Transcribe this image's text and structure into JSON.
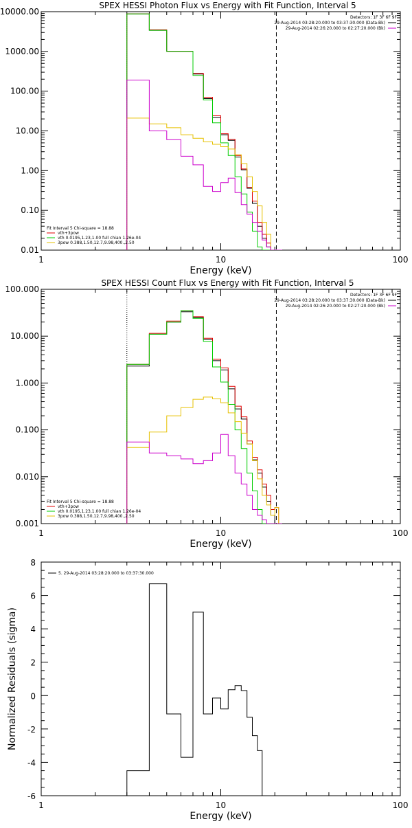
{
  "chart_data": [
    {
      "type": "line",
      "title": "SPEX HESSI Photon Flux vs Energy with Fit Function, Interval 5",
      "xlabel": "Energy (keV)",
      "ylabel": "",
      "xscale": "log",
      "yscale": "log",
      "xlim": [
        1,
        100
      ],
      "ylim": [
        0.01,
        10000
      ],
      "x_ticks": [
        "1",
        "10",
        "100"
      ],
      "y_ticks": [
        "10000.00",
        "1000.00",
        "100.00",
        "10.00",
        "1.00",
        "0.10",
        "0.01"
      ],
      "vlines": {
        "dotted": 3,
        "dashed": 20.4
      },
      "legend_top": {
        "position": "top-right",
        "header": "Detectors: 1F 3F 6F 9F",
        "entries": [
          {
            "label": "29-Aug-2014 03:28:20.000 to 03:37:30.000 (Data-Bk)",
            "color": "#000000"
          },
          {
            "label": "29-Aug-2014 02:26:20.000 to 02:27:20.000 (Bk)",
            "color": "#cc00cc"
          }
        ]
      },
      "legend_bottom": {
        "position": "bottom-left",
        "header": "Fit Interval 5   Chi-square = 18.88",
        "entries": [
          {
            "label": "vth+3pow",
            "color": "#e00000"
          },
          {
            "label": "vth 0.0195,1.23,1.00  full chian 1.26e-04",
            "color": "#00cc00"
          },
          {
            "label": "3pow 0.388,1.50,12.7,9.98,400.,2.50",
            "color": "#e6c000"
          }
        ]
      },
      "bin_edges": [
        3,
        4,
        5,
        6,
        7,
        8,
        9,
        10,
        11,
        12,
        13,
        14,
        15,
        16,
        17,
        18,
        19,
        20,
        21,
        22
      ],
      "series": [
        {
          "color": "#000000",
          "values": [
            8800,
            3400,
            1000,
            1000,
            270,
            65,
            22,
            8,
            5.8,
            2.2,
            1.05,
            0.36,
            0.15,
            0.04,
            0.02,
            0.012,
            0.01,
            0.01,
            0.01
          ]
        },
        {
          "color": "#e00000",
          "values": [
            8800,
            3500,
            1000,
            1000,
            280,
            70,
            24,
            8.5,
            6.2,
            2.4,
            1.1,
            0.38,
            0.17,
            0.05,
            0.025,
            0.015,
            0.01,
            0.01,
            0.01
          ]
        },
        {
          "color": "#00cc00",
          "values": [
            8800,
            3400,
            1000,
            1000,
            250,
            60,
            16,
            5,
            2.4,
            0.7,
            0.26,
            0.09,
            0.03,
            0.012,
            0.01,
            0.01,
            0.01,
            0.01,
            0.01
          ]
        },
        {
          "color": "#e6c000",
          "values": [
            21,
            15,
            12,
            8,
            6.5,
            5.3,
            4.6,
            4,
            3.5,
            2.5,
            1.5,
            0.7,
            0.3,
            0.13,
            0.05,
            0.025,
            0.01,
            0.01,
            0.01
          ]
        },
        {
          "color": "#cc00cc",
          "values": [
            190,
            10,
            6,
            2.3,
            1.4,
            0.4,
            0.3,
            0.5,
            0.65,
            0.28,
            0.14,
            0.08,
            0.05,
            0.03,
            0.018,
            0.012,
            0.01,
            0.01,
            0.01
          ]
        }
      ]
    },
    {
      "type": "line",
      "title": "SPEX HESSI Count Flux vs Energy with Fit Function, Interval 5",
      "xlabel": "Energy (keV)",
      "ylabel": "",
      "xscale": "log",
      "yscale": "log",
      "xlim": [
        1,
        100
      ],
      "ylim": [
        0.001,
        100
      ],
      "x_ticks": [
        "1",
        "10",
        "100"
      ],
      "y_ticks": [
        "100.000",
        "10.000",
        "1.000",
        "0.100",
        "0.010",
        "0.001"
      ],
      "vlines": {
        "dotted": 3,
        "dashed": 20.4
      },
      "legend_top": {
        "position": "top-right",
        "header": "Detectors: 1F 3F 6F 9F",
        "entries": [
          {
            "label": "29-Aug-2014 03:28:20.000 to 03:37:30.000 (Data-Bk)",
            "color": "#000000"
          },
          {
            "label": "29-Aug-2014 02:26:20.000 to 02:27:20.000 (Bk)",
            "color": "#cc00cc"
          }
        ]
      },
      "legend_bottom": {
        "position": "bottom-left",
        "header": "Fit Interval 5   Chi-square = 18.88",
        "entries": [
          {
            "label": "vth+3pow",
            "color": "#e00000"
          },
          {
            "label": "vth 0.0195,1.23,1.00  full chian 1.26e-04",
            "color": "#00cc00"
          },
          {
            "label": "3pow 0.388,1.50,12.7,9.98,400.,2.50",
            "color": "#e6c000"
          }
        ]
      },
      "bin_edges": [
        3,
        4,
        5,
        6,
        7,
        8,
        9,
        10,
        11,
        12,
        13,
        14,
        15,
        16,
        17,
        18,
        19,
        20,
        21,
        22
      ],
      "series": [
        {
          "color": "#000000",
          "values": [
            2.3,
            11,
            20,
            33,
            25,
            8.5,
            3,
            1.9,
            0.75,
            0.28,
            0.17,
            0.05,
            0.023,
            0.012,
            0.006,
            0.003,
            0.0015,
            0.001,
            0.001
          ]
        },
        {
          "color": "#e00000",
          "values": [
            2.5,
            11.5,
            21,
            35,
            26,
            9,
            3.2,
            2.1,
            0.85,
            0.32,
            0.19,
            0.058,
            0.026,
            0.014,
            0.007,
            0.004,
            0.002,
            0.0022,
            0.001
          ]
        },
        {
          "color": "#00cc00",
          "values": [
            2.5,
            11,
            20,
            35,
            24,
            7.7,
            2.2,
            1.05,
            0.35,
            0.1,
            0.04,
            0.012,
            0.005,
            0.002,
            0.001,
            0.001,
            0.001,
            0.001,
            0.001
          ]
        },
        {
          "color": "#e6c000",
          "values": [
            0.042,
            0.09,
            0.2,
            0.3,
            0.45,
            0.5,
            0.46,
            0.38,
            0.23,
            0.15,
            0.085,
            0.05,
            0.022,
            0.009,
            0.004,
            0.0025,
            0.0015,
            0.0022,
            0.001
          ]
        },
        {
          "color": "#cc00cc",
          "values": [
            0.055,
            0.032,
            0.028,
            0.024,
            0.019,
            0.022,
            0.032,
            0.08,
            0.028,
            0.012,
            0.007,
            0.004,
            0.002,
            0.0015,
            0.0012,
            0.001,
            0.001,
            0.001,
            0.001
          ]
        }
      ]
    },
    {
      "type": "line",
      "title": "",
      "xlabel": "Energy (keV)",
      "ylabel": "Normalized Residuals (sigma)",
      "xscale": "log",
      "yscale": "linear",
      "xlim": [
        1,
        100
      ],
      "ylim": [
        -6,
        8
      ],
      "x_ticks": [
        "1",
        "10",
        "100"
      ],
      "y_ticks": [
        "8",
        "6",
        "4",
        "2",
        "0",
        "-2",
        "-4",
        "-6"
      ],
      "legend": {
        "position": "top-left",
        "entries": [
          {
            "label": "5. 29-Aug-2014 03:28:20.000 to 03:37:30.000",
            "color": "#000000"
          }
        ]
      },
      "bin_edges": [
        3,
        4,
        5,
        6,
        7,
        8,
        9,
        10,
        11,
        12,
        13,
        14,
        15,
        16,
        17,
        18,
        19,
        20
      ],
      "series": [
        {
          "color": "#000000",
          "values": [
            -4.5,
            6.7,
            -1.1,
            -3.7,
            5.0,
            -1.1,
            -0.15,
            -0.8,
            0.35,
            0.6,
            0.3,
            -1.3,
            -2.4,
            -3.3,
            -6.0,
            -6.0,
            -6.0
          ]
        }
      ]
    }
  ]
}
